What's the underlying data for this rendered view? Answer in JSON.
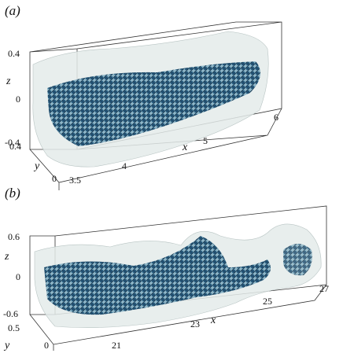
{
  "panels": [
    {
      "label": "(a)",
      "axes": {
        "x": {
          "label": "x",
          "ticks": [
            "3.5",
            "4",
            "5",
            "6"
          ]
        },
        "y": {
          "label": "y",
          "ticks": [
            "0.4",
            "0"
          ]
        },
        "z": {
          "label": "z",
          "ticks": [
            "0.4",
            "0",
            "-0.4"
          ]
        }
      }
    },
    {
      "label": "(b)",
      "axes": {
        "x": {
          "label": "x",
          "ticks": [
            "21",
            "23",
            "25",
            "27"
          ]
        },
        "y": {
          "label": "y",
          "ticks": [
            "0.5",
            "0"
          ]
        },
        "z": {
          "label": "z",
          "ticks": [
            "0.6",
            "0",
            "-0.6"
          ]
        }
      }
    }
  ]
}
